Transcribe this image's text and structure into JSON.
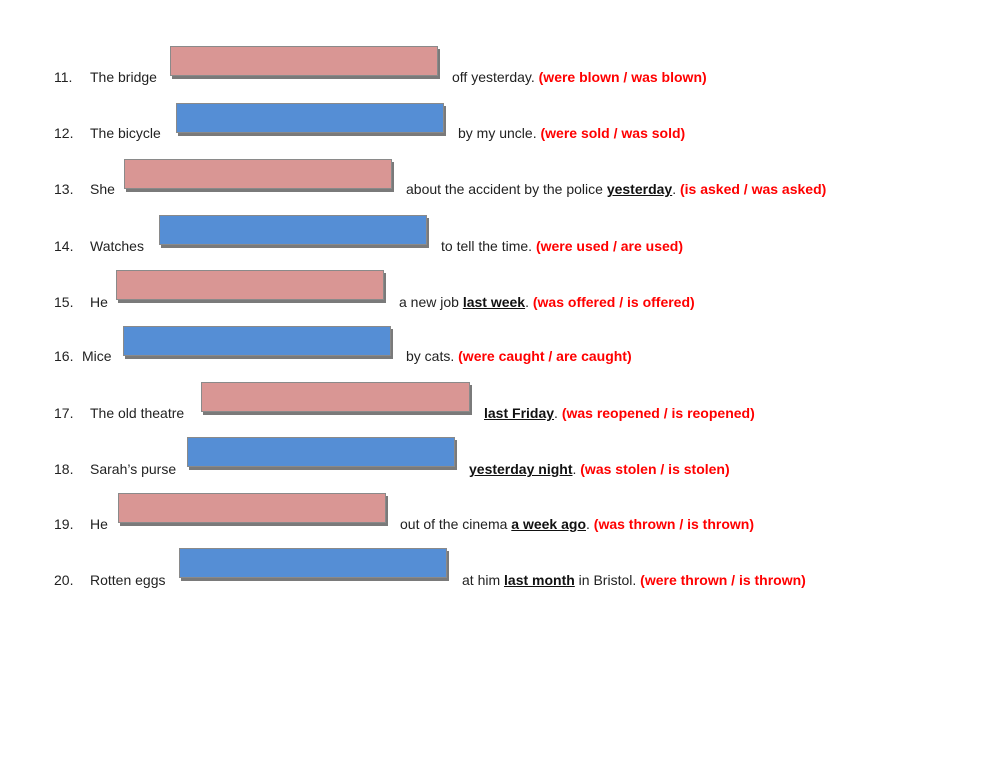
{
  "rows": [
    {
      "number": "11.",
      "subject": "The bridge",
      "blank_color": "#d99694",
      "before": "off yesterday. ",
      "underlined": "",
      "after": "",
      "options": "(were blown / was blown)"
    },
    {
      "number": "12.",
      "subject": "The bicycle",
      "blank_color": "#558ed5",
      "before": "by my uncle. ",
      "underlined": "",
      "after": "",
      "options": "(were sold / was sold)"
    },
    {
      "number": "13.",
      "subject": "She",
      "blank_color": "#d99694",
      "before": "about the accident by the police ",
      "underlined": "yesterday",
      "after": ". ",
      "options": "(is asked / was asked)"
    },
    {
      "number": "14.",
      "subject": "Watches",
      "blank_color": "#558ed5",
      "before": "to tell the time. ",
      "underlined": "",
      "after": "",
      "options": "(were used / are used)"
    },
    {
      "number": "15.",
      "subject": "He",
      "blank_color": "#d99694",
      "before": "a new job ",
      "underlined": "last week",
      "after": ". ",
      "options": "(was offered / is offered)"
    },
    {
      "number": "16.",
      "subject": "Mice",
      "blank_color": "#558ed5",
      "before": "by cats. ",
      "underlined": "",
      "after": "",
      "options": "(were caught / are caught)"
    },
    {
      "number": "17.",
      "subject": "The old theatre",
      "blank_color": "#d99694",
      "before": "",
      "underlined": "last Friday",
      "after": ". ",
      "options": "(was reopened / is reopened)"
    },
    {
      "number": "18.",
      "subject": "Sarah’s purse",
      "blank_color": "#558ed5",
      "before": "",
      "underlined": "yesterday night",
      "after": ". ",
      "options": "(was stolen / is stolen)"
    },
    {
      "number": "19.",
      "subject": "He",
      "blank_color": "#d99694",
      "before": "out of the cinema ",
      "underlined": "a week ago",
      "after": ". ",
      "options": "(was thrown / is thrown)"
    },
    {
      "number": "20.",
      "subject": "Rotten eggs",
      "blank_color": "#558ed5",
      "before": "at him ",
      "underlined": "last month",
      "after": " in Bristol. ",
      "options": "(were thrown / is thrown)"
    }
  ]
}
